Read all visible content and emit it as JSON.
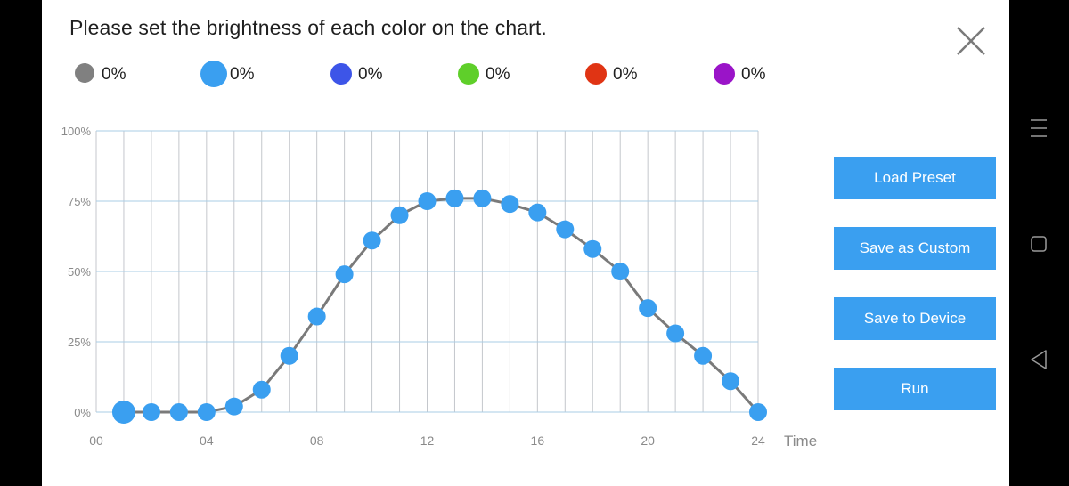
{
  "dialog": {
    "title": "Please set the brightness of each color on the chart.",
    "close_icon": "close-icon"
  },
  "legend": [
    {
      "color": "#808080",
      "value": "0%"
    },
    {
      "color": "#3a9ff0",
      "value": "0%"
    },
    {
      "color": "#3d55e8",
      "value": "0%"
    },
    {
      "color": "#5fcf2a",
      "value": "0%"
    },
    {
      "color": "#e03414",
      "value": "0%"
    },
    {
      "color": "#9a14c8",
      "value": "0%"
    }
  ],
  "chart_data": {
    "type": "line",
    "xlabel": "Time",
    "ylabel": "",
    "xlim": [
      0,
      24
    ],
    "ylim": [
      0,
      100
    ],
    "x_ticks": [
      "00",
      "04",
      "08",
      "12",
      "16",
      "20",
      "24"
    ],
    "y_ticks": [
      "0%",
      "25%",
      "50%",
      "75%",
      "100%"
    ],
    "grid": true,
    "series": [
      {
        "color": "#3a9ff0",
        "line_color": "#7a7a7a",
        "x": [
          1,
          2,
          3,
          4,
          5,
          6,
          7,
          8,
          9,
          10,
          11,
          12,
          13,
          14,
          15,
          16,
          17,
          18,
          19,
          20,
          21,
          22,
          23,
          24
        ],
        "values": [
          0,
          0,
          0,
          0,
          2,
          8,
          20,
          34,
          49,
          61,
          70,
          75,
          76,
          76,
          74,
          71,
          65,
          58,
          50,
          37,
          28,
          20,
          11,
          0
        ]
      }
    ]
  },
  "buttons": {
    "load_preset": "Load Preset",
    "save_custom": "Save as Custom",
    "save_device": "Save to Device",
    "run": "Run"
  },
  "navbar": {
    "menu_icon": "menu-icon",
    "home_icon": "square-home-icon",
    "back_icon": "back-triangle-icon"
  }
}
